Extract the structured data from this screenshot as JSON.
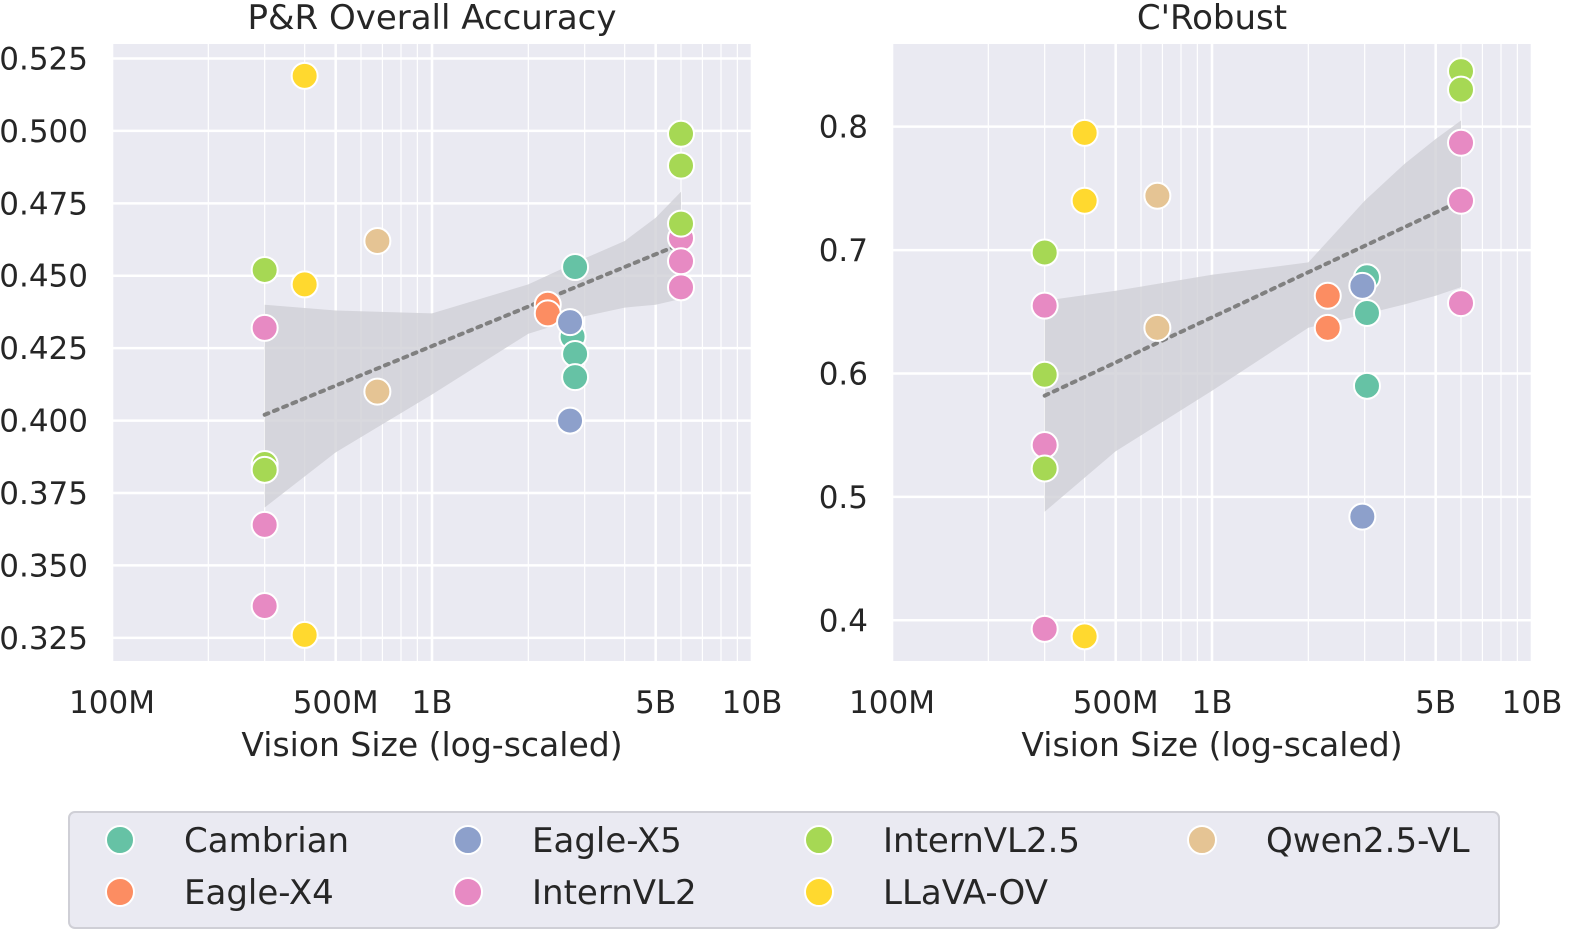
{
  "chart_data": [
    {
      "type": "scatter",
      "title": "P&R Overall Accuracy",
      "xlabel": "Vision Size (log-scaled)",
      "ylabel": "",
      "xscale": "log",
      "xlim": [
        100000000,
        10000000000
      ],
      "ylim": [
        0.317,
        0.53
      ],
      "x_ticks": [
        {
          "value": 100000000,
          "label": "100M"
        },
        {
          "value": 500000000,
          "label": "500M"
        },
        {
          "value": 1000000000,
          "label": "1B"
        },
        {
          "value": 5000000000,
          "label": "5B"
        },
        {
          "value": 10000000000,
          "label": "10B"
        }
      ],
      "y_ticks": [
        {
          "value": 0.325,
          "label": "0.325"
        },
        {
          "value": 0.35,
          "label": "0.350"
        },
        {
          "value": 0.375,
          "label": "0.375"
        },
        {
          "value": 0.4,
          "label": "0.400"
        },
        {
          "value": 0.425,
          "label": "0.425"
        },
        {
          "value": 0.45,
          "label": "0.450"
        },
        {
          "value": 0.475,
          "label": "0.475"
        },
        {
          "value": 0.5,
          "label": "0.500"
        },
        {
          "value": 0.525,
          "label": "0.525"
        }
      ],
      "trend": {
        "x": [
          300000000,
          6000000000
        ],
        "y": [
          0.402,
          0.461
        ]
      },
      "band": {
        "x": [
          300000000,
          500000000,
          1000000000,
          2000000000,
          3000000000,
          4000000000,
          5000000000,
          6000000000
        ],
        "upper": [
          0.44,
          0.438,
          0.437,
          0.447,
          0.456,
          0.462,
          0.47,
          0.479
        ],
        "lower": [
          0.37,
          0.389,
          0.409,
          0.43,
          0.436,
          0.439,
          0.44,
          0.442
        ]
      },
      "series": [
        {
          "name": "Cambrian",
          "points": [
            [
              2800000000,
              0.453
            ],
            [
              2750000000,
              0.429
            ],
            [
              2800000000,
              0.423
            ],
            [
              2800000000,
              0.415
            ]
          ]
        },
        {
          "name": "Eagle-X4",
          "points": [
            [
              2300000000,
              0.44
            ],
            [
              2300000000,
              0.437
            ]
          ]
        },
        {
          "name": "Eagle-X5",
          "points": [
            [
              2700000000,
              0.434
            ],
            [
              2700000000,
              0.4
            ]
          ]
        },
        {
          "name": "InternVL2",
          "points": [
            [
              300000000,
              0.432
            ],
            [
              300000000,
              0.364
            ],
            [
              300000000,
              0.336
            ],
            [
              6000000000,
              0.463
            ],
            [
              6000000000,
              0.455
            ],
            [
              6000000000,
              0.446
            ]
          ]
        },
        {
          "name": "InternVL2.5",
          "points": [
            [
              300000000,
              0.452
            ],
            [
              300000000,
              0.385
            ],
            [
              300000000,
              0.383
            ],
            [
              6000000000,
              0.499
            ],
            [
              6000000000,
              0.488
            ],
            [
              6000000000,
              0.468
            ]
          ]
        },
        {
          "name": "LLaVA-OV",
          "points": [
            [
              400000000,
              0.519
            ],
            [
              400000000,
              0.447
            ],
            [
              400000000,
              0.326
            ]
          ]
        },
        {
          "name": "Qwen2.5-VL",
          "points": [
            [
              675000000,
              0.462
            ],
            [
              675000000,
              0.41
            ]
          ]
        }
      ]
    },
    {
      "type": "scatter",
      "title": "C'Robust",
      "xlabel": "Vision Size (log-scaled)",
      "ylabel": "",
      "xscale": "log",
      "xlim": [
        100000000,
        10000000000
      ],
      "ylim": [
        0.367,
        0.867
      ],
      "x_ticks": [
        {
          "value": 100000000,
          "label": "100M"
        },
        {
          "value": 500000000,
          "label": "500M"
        },
        {
          "value": 1000000000,
          "label": "1B"
        },
        {
          "value": 5000000000,
          "label": "5B"
        },
        {
          "value": 10000000000,
          "label": "10B"
        }
      ],
      "y_ticks": [
        {
          "value": 0.4,
          "label": "0.4"
        },
        {
          "value": 0.5,
          "label": "0.5"
        },
        {
          "value": 0.6,
          "label": "0.6"
        },
        {
          "value": 0.7,
          "label": "0.7"
        },
        {
          "value": 0.8,
          "label": "0.8"
        }
      ],
      "trend": {
        "x": [
          300000000,
          6000000000
        ],
        "y": [
          0.582,
          0.74
        ]
      },
      "band": {
        "x": [
          300000000,
          500000000,
          1000000000,
          2000000000,
          3000000000,
          4000000000,
          5000000000,
          6000000000
        ],
        "upper": [
          0.659,
          0.667,
          0.68,
          0.69,
          0.74,
          0.77,
          0.79,
          0.805
        ],
        "lower": [
          0.488,
          0.537,
          0.586,
          0.637,
          0.648,
          0.656,
          0.663,
          0.67
        ]
      },
      "series": [
        {
          "name": "Cambrian",
          "points": [
            [
              3050000000,
              0.678
            ],
            [
              3050000000,
              0.649
            ],
            [
              3050000000,
              0.59
            ]
          ]
        },
        {
          "name": "Eagle-X4",
          "points": [
            [
              2300000000,
              0.663
            ],
            [
              2300000000,
              0.637
            ]
          ]
        },
        {
          "name": "Eagle-X5",
          "points": [
            [
              2950000000,
              0.671
            ],
            [
              2950000000,
              0.484
            ]
          ]
        },
        {
          "name": "InternVL2",
          "points": [
            [
              300000000,
              0.655
            ],
            [
              300000000,
              0.542
            ],
            [
              300000000,
              0.393
            ],
            [
              6000000000,
              0.787
            ],
            [
              6000000000,
              0.74
            ],
            [
              6000000000,
              0.657
            ]
          ]
        },
        {
          "name": "InternVL2.5",
          "points": [
            [
              300000000,
              0.698
            ],
            [
              300000000,
              0.599
            ],
            [
              300000000,
              0.523
            ],
            [
              6000000000,
              0.845
            ],
            [
              6000000000,
              0.83
            ]
          ]
        },
        {
          "name": "LLaVA-OV",
          "points": [
            [
              400000000,
              0.795
            ],
            [
              400000000,
              0.74
            ],
            [
              400000000,
              0.387
            ]
          ]
        },
        {
          "name": "Qwen2.5-VL",
          "points": [
            [
              675000000,
              0.744
            ],
            [
              675000000,
              0.637
            ]
          ]
        }
      ]
    }
  ],
  "legend": {
    "placement": "bottom",
    "entries": [
      {
        "name": "Cambrian",
        "color": "#66c2a5"
      },
      {
        "name": "Eagle-X4",
        "color": "#fc8d62"
      },
      {
        "name": "Eagle-X5",
        "color": "#8da0cb"
      },
      {
        "name": "InternVL2",
        "color": "#e78ac3"
      },
      {
        "name": "InternVL2.5",
        "color": "#a6d854"
      },
      {
        "name": "LLaVA-OV",
        "color": "#ffd92f"
      },
      {
        "name": "Qwen2.5-VL",
        "color": "#e5c494"
      }
    ]
  },
  "colors": {
    "plot_bg": "#eaeaf2",
    "grid": "#ffffff",
    "band": "#cfcfd6",
    "trend": "#808080"
  }
}
